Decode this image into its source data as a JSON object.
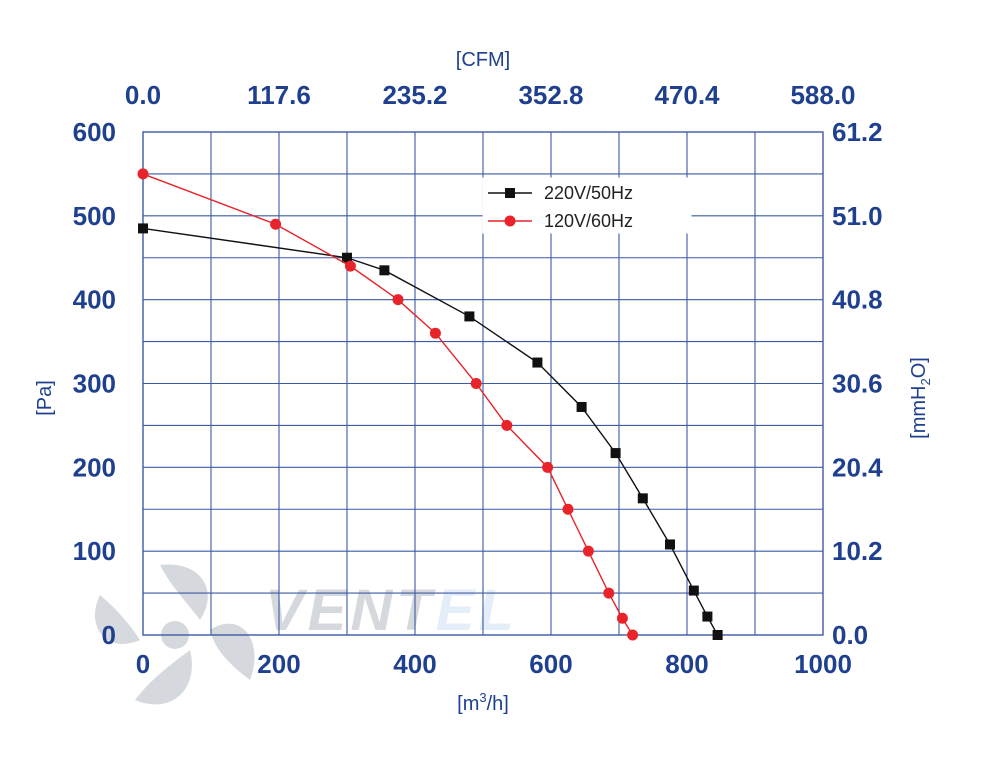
{
  "chart_data": {
    "type": "line",
    "axes": {
      "x_bottom": {
        "label": "[m",
        "label_sup": "3",
        "label_tail": "/h]",
        "min": 0,
        "max": 1000,
        "ticks": [
          "0",
          "200",
          "400",
          "600",
          "800",
          "1000"
        ]
      },
      "x_top": {
        "label": "[CFM]",
        "min": 0,
        "max": 588,
        "ticks": [
          "0.0",
          "117.6",
          "235.2",
          "352.8",
          "470.4",
          "588.0"
        ]
      },
      "y_left": {
        "label": "[Pa]",
        "min": 0,
        "max": 600,
        "ticks": [
          "0",
          "100",
          "200",
          "300",
          "400",
          "500",
          "600"
        ]
      },
      "y_right": {
        "label": "[mmH",
        "label_sub": "2",
        "label_tail": "O]",
        "min": 0,
        "max": 61.2,
        "ticks": [
          "0.0",
          "10.2",
          "20.4",
          "30.6",
          "40.8",
          "51.0",
          "61.2"
        ]
      }
    },
    "grid": true,
    "legend_position": "top-right",
    "series": [
      {
        "name": "220V/50Hz",
        "color": "#111111",
        "marker": "square",
        "x": [
          0,
          300,
          355,
          480,
          580,
          645,
          695,
          735,
          775,
          810,
          830,
          845
        ],
        "y": [
          485,
          450,
          435,
          380,
          325,
          272,
          217,
          163,
          108,
          53,
          22,
          0
        ]
      },
      {
        "name": "120V/60Hz",
        "color": "#e8232a",
        "marker": "circle",
        "x": [
          0,
          195,
          305,
          375,
          430,
          490,
          535,
          595,
          625,
          655,
          685,
          705,
          720
        ],
        "y": [
          550,
          490,
          440,
          400,
          360,
          300,
          250,
          200,
          150,
          100,
          50,
          20,
          0
        ]
      }
    ]
  },
  "watermark": {
    "brand": "VENTEL",
    "colors": [
      "#6c7686",
      "#9fc3e7"
    ]
  },
  "colors": {
    "axis_text": "#1f3f8f",
    "grid": "#3b5ba5"
  }
}
